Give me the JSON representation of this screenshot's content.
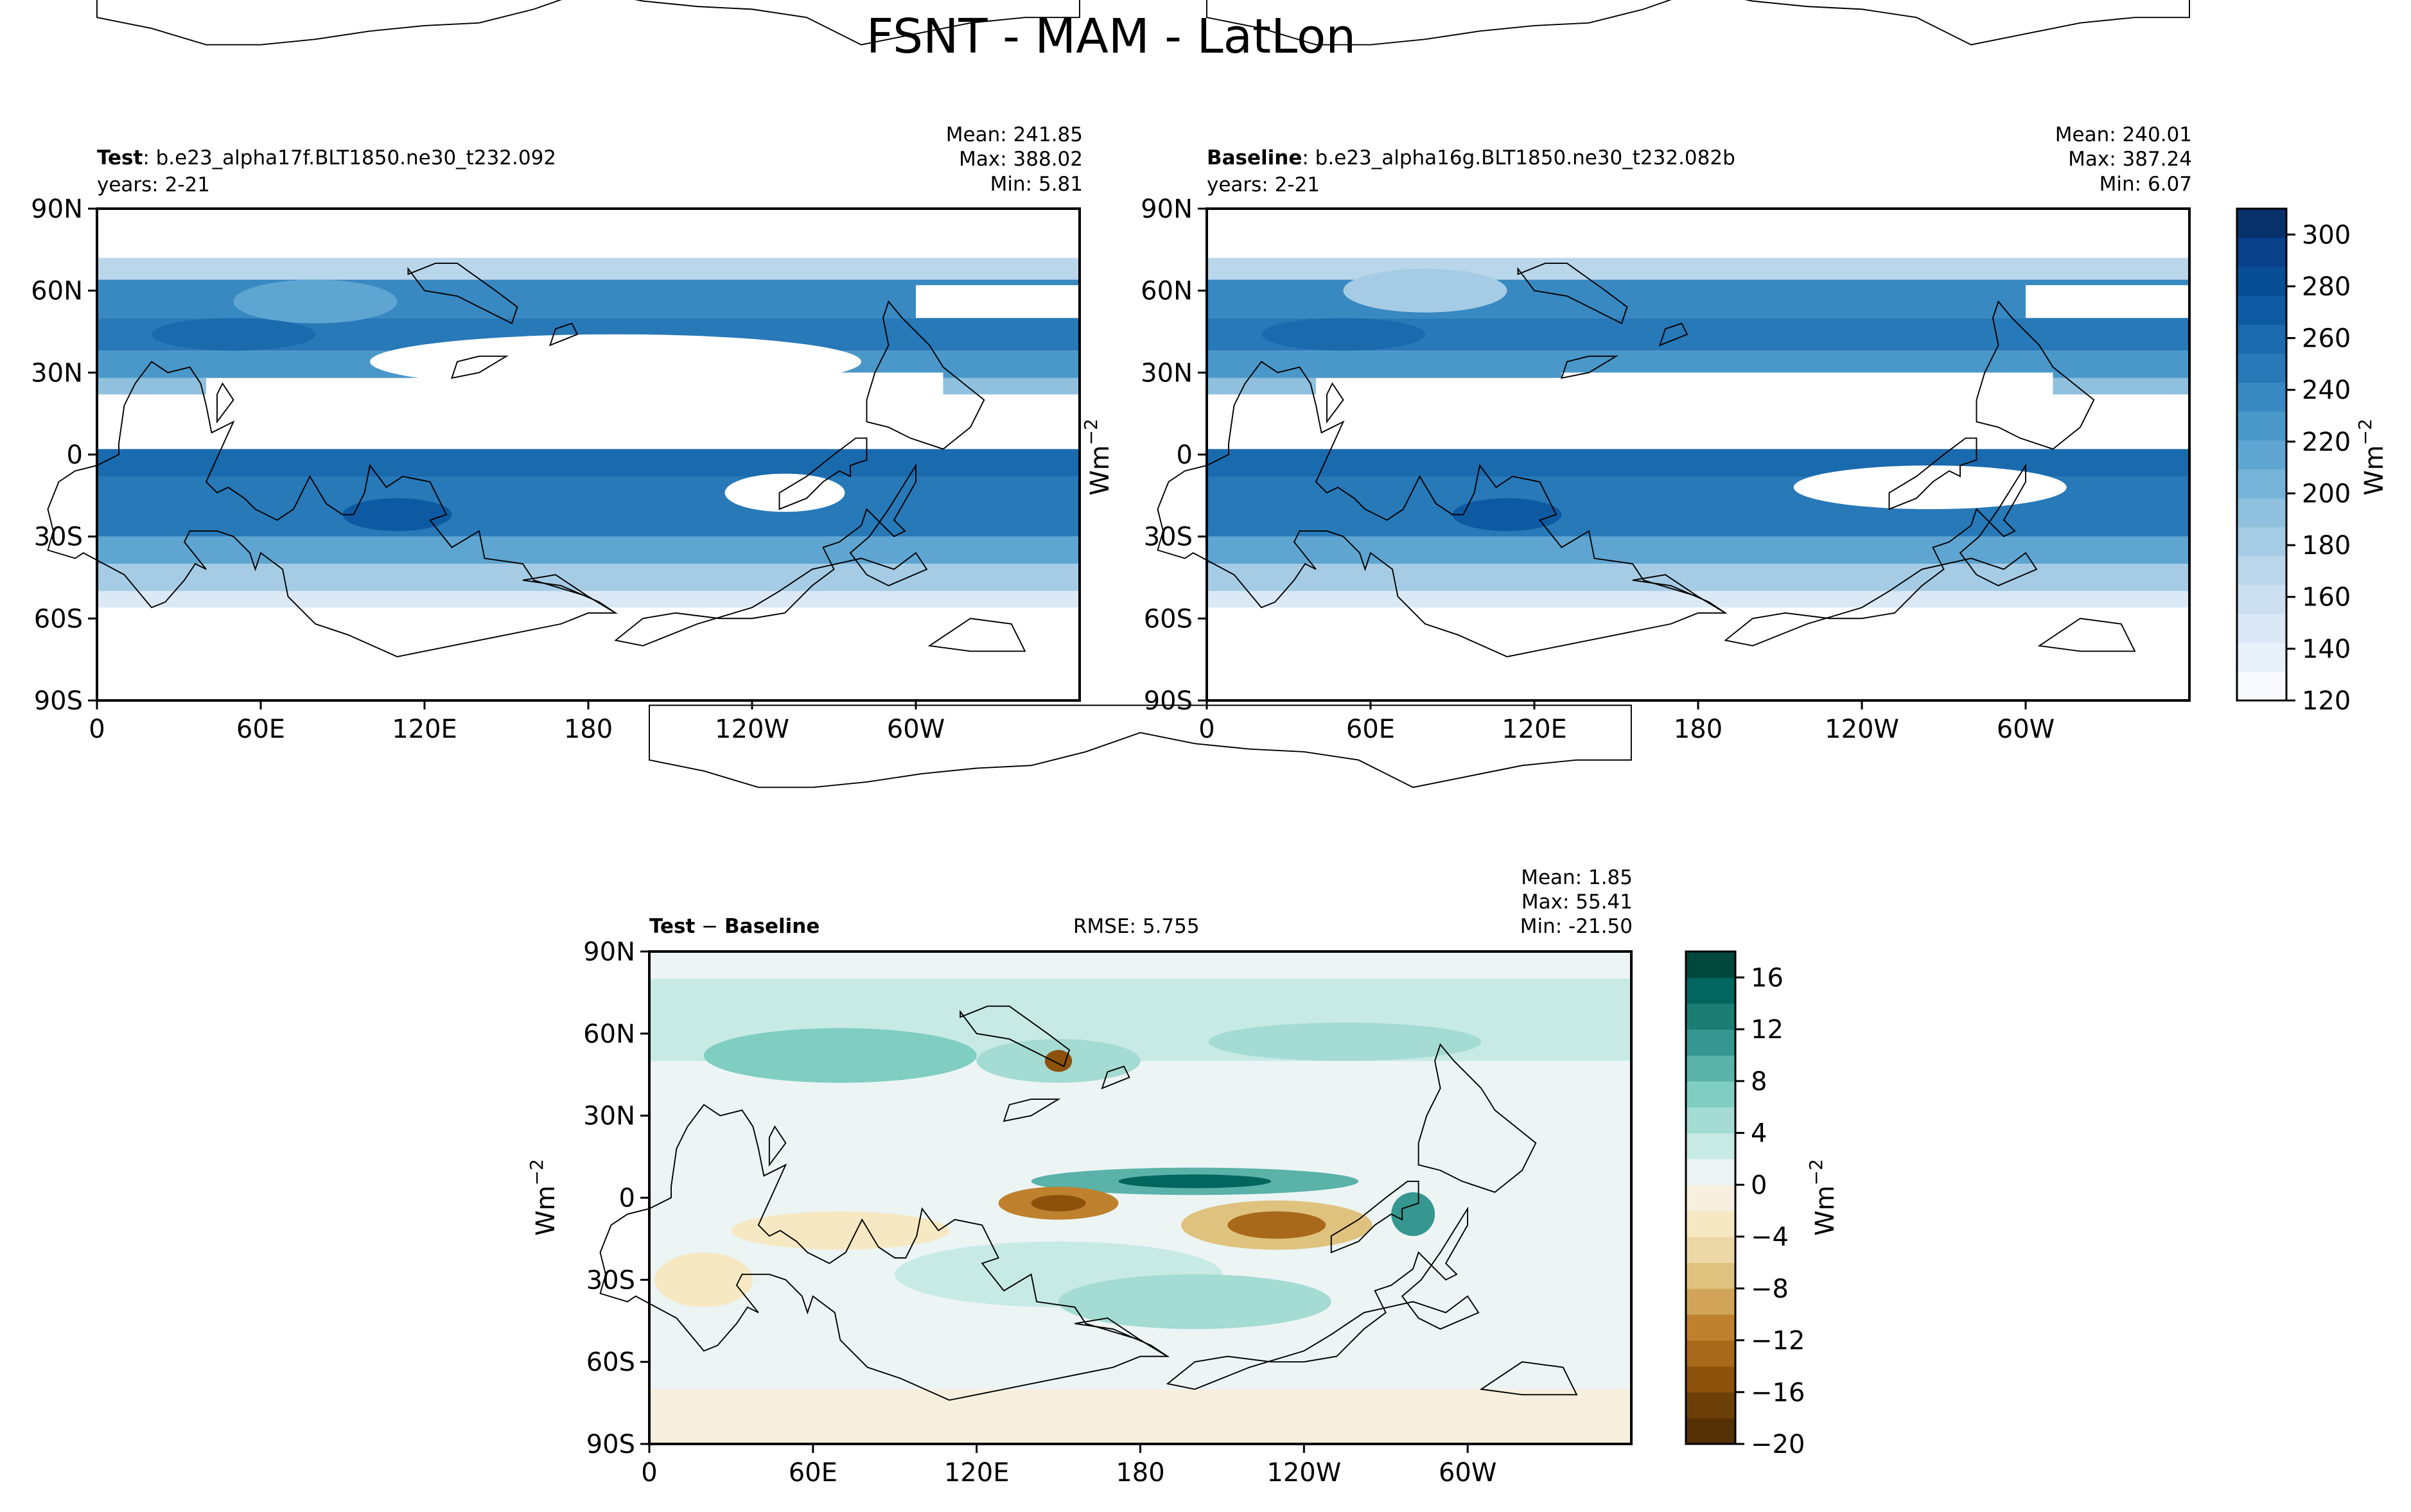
{
  "title": "FSNT - MAM - LatLon",
  "colors": {
    "blues": [
      "#f7fbff",
      "#e8f1fa",
      "#dbe9f6",
      "#ccdff1",
      "#bad6eb",
      "#a5cce4",
      "#8fc1de",
      "#75b4d8",
      "#5ea5d1",
      "#4a98c9",
      "#3888c1",
      "#2779b8",
      "#1a6aae",
      "#0d5aa3",
      "#084e96",
      "#08418a",
      "#08306b"
    ],
    "diverging": [
      "#543005",
      "#6d3f08",
      "#8c510a",
      "#a8691b",
      "#bf812d",
      "#d1a45a",
      "#dfc27d",
      "#ecd8a7",
      "#f6e8c3",
      "#f6efde",
      "#ecf5f4",
      "#c7eae5",
      "#a4dbd2",
      "#80cdc1",
      "#5ab2a8",
      "#35978f",
      "#1c7e73",
      "#01665e",
      "#00493c"
    ],
    "land": "#000000"
  },
  "chart_data": [
    {
      "type": "heatmap",
      "panel": "test",
      "label_bold": "Test",
      "label_text": ": b.e23_alpha17f.BLT1850.ne30_t232.092",
      "years": "years: 2-21",
      "stats": [
        "Mean: 241.85",
        "Max: 388.02",
        "Min:  5.81"
      ],
      "x_ticks": [
        "0",
        "60E",
        "120E",
        "180",
        "120W",
        "60W"
      ],
      "y_ticks": [
        "90N",
        "60N",
        "30N",
        "0",
        "30S",
        "60S",
        "90S"
      ],
      "xlim": [
        0,
        360
      ],
      "ylim": [
        -90,
        90
      ],
      "ylabel": "Wm$^{-2}$"
    },
    {
      "type": "heatmap",
      "panel": "baseline",
      "label_bold": "Baseline",
      "label_text": ": b.e23_alpha16g.BLT1850.ne30_t232.082b",
      "years": "years: 2-21",
      "stats": [
        "Mean: 240.01",
        "Max: 387.24",
        "Min:  6.07"
      ],
      "x_ticks": [
        "0",
        "60E",
        "120E",
        "180",
        "120W",
        "60W"
      ],
      "y_ticks": [
        "90N",
        "60N",
        "30N",
        "0",
        "30S",
        "60S",
        "90S"
      ],
      "xlim": [
        0,
        360
      ],
      "ylim": [
        -90,
        90
      ]
    },
    {
      "type": "heatmap",
      "panel": "difference",
      "label_bold": "Test",
      "label_minus": " − ",
      "label_bold2": "Baseline",
      "rmse": "RMSE: 5.755",
      "stats": [
        "Mean:  1.85",
        "Max: 55.41",
        "Min: -21.50"
      ],
      "x_ticks": [
        "0",
        "60E",
        "120E",
        "180",
        "120W",
        "60W"
      ],
      "y_ticks": [
        "90N",
        "60N",
        "30N",
        "0",
        "30S",
        "60S",
        "90S"
      ],
      "xlim": [
        0,
        360
      ],
      "ylim": [
        -90,
        90
      ],
      "ylabel": "Wm$^{-2}$"
    }
  ],
  "colorbars": [
    {
      "name": "test-baseline-colorbar",
      "vmin": 120,
      "vmax": 310,
      "ticks": [
        120,
        140,
        160,
        180,
        200,
        220,
        240,
        260,
        280,
        300
      ],
      "tick_labels": [
        "120",
        "140",
        "160",
        "180",
        "200",
        "220",
        "240",
        "260",
        "280",
        "300"
      ],
      "label": "Wm$^{-2}$"
    },
    {
      "name": "difference-colorbar",
      "vmin": -20,
      "vmax": 18,
      "ticks": [
        -20,
        -16,
        -12,
        -8,
        -4,
        0,
        4,
        8,
        12,
        16
      ],
      "tick_labels": [
        "−20",
        "−16",
        "−12",
        "−8",
        "−4",
        "0",
        "4",
        "8",
        "12",
        "16"
      ],
      "label": "Wm$^{-2}$"
    }
  ]
}
